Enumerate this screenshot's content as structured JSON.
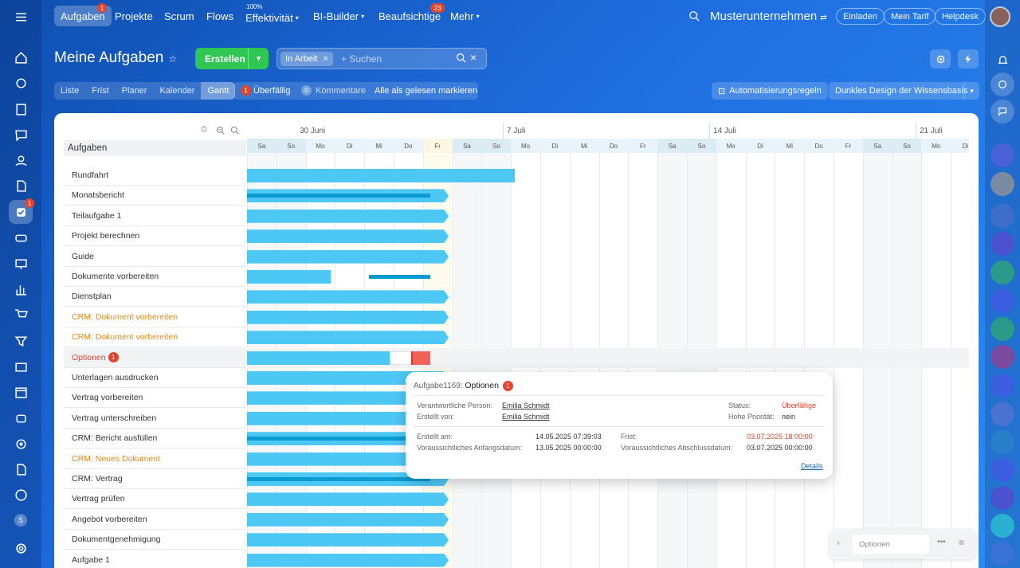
{
  "nav": {
    "tasks": "Aufgaben",
    "tasks_badge": "1",
    "projects": "Projekte",
    "scrum": "Scrum",
    "flows": "Flows",
    "efficiency": "Effektivität",
    "efficiency_pct": "100%",
    "bi": "BI-Builder",
    "supervise": "Beaufsichtige",
    "supervise_badge": "23",
    "more": "Mehr",
    "company": "Musterunternehmen",
    "invite": "Einladen",
    "tariff": "Mein Tarif",
    "helpdesk": "Helpdesk"
  },
  "page": {
    "title": "Meine Aufgaben",
    "create": "Erstellen",
    "filter_chip": "In Arbeit",
    "search_placeholder": "+ Suchen"
  },
  "view_tabs": [
    "Liste",
    "Frist",
    "Planer",
    "Kalender",
    "Gantt"
  ],
  "active_view": "Gantt",
  "counters": {
    "overdue_count": "1",
    "overdue": "Überfällig",
    "comments_count": "0",
    "comments": "Kommentare",
    "mark_read": "Alle als gelesen markieren"
  },
  "tools": {
    "automation": "Automatisierungsregeln",
    "theme": "Dunkles Design der Wissensbasis"
  },
  "left_badge": "1",
  "avatar_letter": "S",
  "task_header": "Aufgaben",
  "tasks": [
    {
      "name": "Rundfahrt",
      "style": "normal"
    },
    {
      "name": "Monatsbericht",
      "style": "normal"
    },
    {
      "name": "Teilaufgabe 1",
      "style": "normal"
    },
    {
      "name": "Projekt berechnen",
      "style": "normal"
    },
    {
      "name": "Guide",
      "style": "normal"
    },
    {
      "name": "Dokumente vorbereiten",
      "style": "normal"
    },
    {
      "name": "Dienstplan",
      "style": "normal"
    },
    {
      "name": "CRM: Dokument vorbereiten",
      "style": "orange"
    },
    {
      "name": "CRM: Dokument vorbereiten",
      "style": "orange"
    },
    {
      "name": "Optionen",
      "style": "red",
      "badge": "1"
    },
    {
      "name": "Unterlagen ausdrucken",
      "style": "normal"
    },
    {
      "name": "Vertrag vorbereiten",
      "style": "normal"
    },
    {
      "name": "Vertrag unterschreiben",
      "style": "normal"
    },
    {
      "name": "CRM: Bericht ausfüllen",
      "style": "normal"
    },
    {
      "name": "CRM: Neues Dokument",
      "style": "orange"
    },
    {
      "name": "CRM: Vertrag",
      "style": "normal"
    },
    {
      "name": "Vertrag prüfen",
      "style": "normal"
    },
    {
      "name": "Angebot vorbereiten",
      "style": "normal"
    },
    {
      "name": "Dokumentgenehmigung",
      "style": "normal"
    },
    {
      "name": "Aufgabe 1",
      "style": "normal"
    }
  ],
  "weeks": [
    "30 Juni",
    "7 Juli",
    "14 Juli",
    "21 Juli"
  ],
  "days": [
    "Sa",
    "So",
    "Mo",
    "Di",
    "Mi",
    "Do",
    "Fr",
    "Sa",
    "So",
    "Mo",
    "Di",
    "Mi",
    "Do",
    "Fr",
    "Sa",
    "So",
    "Mo",
    "Di",
    "Mi",
    "Do",
    "Fr",
    "Sa",
    "So",
    "Mo",
    "Di"
  ],
  "popup": {
    "task_id": "Aufgabe1169:",
    "task_name": "Optionen",
    "badge": "1",
    "responsible_label": "Verantwortliche Person:",
    "responsible": "Emilia Schmidt",
    "created_by_label": "Erstellt von:",
    "created_by": "Emilia Schmidt",
    "status_label": "Status:",
    "status": "Überfällige",
    "priority_label": "Hohe Priorität:",
    "priority": "nein",
    "created_at_label": "Erstellt am:",
    "created_at": "14.05.2025 07:39:03",
    "start_label": "Voraussichtliches Anfangsdatum:",
    "start": "13.05.2025 00:00:00",
    "deadline_label": "Frist:",
    "deadline": "03.07.2025 18:00:00",
    "end_label": "Voraussichtliches Abschlussdatum:",
    "end": "03.07.2025 00:00:00",
    "details": "Details"
  },
  "bottom_widget": {
    "placeholder": "Optionen"
  }
}
